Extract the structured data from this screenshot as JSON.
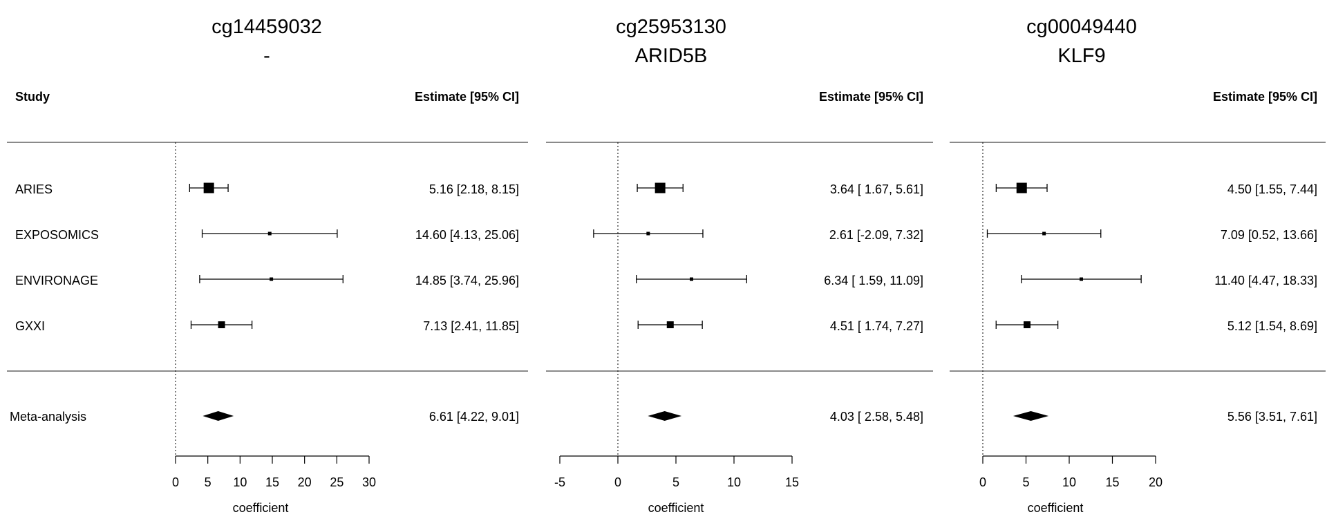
{
  "chart_data": [
    {
      "type": "forest",
      "title": "cg14459032",
      "subtitle": "-",
      "header_study": "Study",
      "header_estimate": "Estimate [95% CI]",
      "xlabel": "coefficient",
      "xticks": [
        "0",
        "5",
        "10",
        "15",
        "20",
        "25",
        "30"
      ],
      "xlim": [
        0,
        30
      ],
      "reference_line": 0,
      "studies": [
        {
          "name": "ARIES",
          "estimate": 5.16,
          "lower": 2.18,
          "upper": 8.15,
          "label": "5.16 [2.18,  8.15]",
          "weight": "large"
        },
        {
          "name": "EXPOSOMICS",
          "estimate": 14.6,
          "lower": 4.13,
          "upper": 25.06,
          "label": "14.60 [4.13, 25.06]",
          "weight": "small"
        },
        {
          "name": "ENVIRONAGE",
          "estimate": 14.85,
          "lower": 3.74,
          "upper": 25.96,
          "label": "14.85 [3.74, 25.96]",
          "weight": "small"
        },
        {
          "name": "GXXI",
          "estimate": 7.13,
          "lower": 2.41,
          "upper": 11.85,
          "label": "7.13 [2.41, 11.85]",
          "weight": "medium"
        }
      ],
      "meta": {
        "name": "Meta-analysis",
        "estimate": 6.61,
        "lower": 4.22,
        "upper": 9.01,
        "label": "6.61 [4.22,  9.01]"
      }
    },
    {
      "type": "forest",
      "title": "cg25953130",
      "subtitle": "ARID5B",
      "header_estimate": "Estimate [95% CI]",
      "xlabel": "coefficient",
      "xticks": [
        "-5",
        "0",
        "5",
        "10",
        "15"
      ],
      "xlim": [
        -5,
        15
      ],
      "reference_line": 0,
      "studies": [
        {
          "estimate": 3.64,
          "lower": 1.67,
          "upper": 5.61,
          "label": "3.64 [ 1.67,  5.61]",
          "weight": "large"
        },
        {
          "estimate": 2.61,
          "lower": -2.09,
          "upper": 7.32,
          "label": "2.61 [-2.09,  7.32]",
          "weight": "small"
        },
        {
          "estimate": 6.34,
          "lower": 1.59,
          "upper": 11.09,
          "label": "6.34 [ 1.59, 11.09]",
          "weight": "small"
        },
        {
          "estimate": 4.51,
          "lower": 1.74,
          "upper": 7.27,
          "label": "4.51 [ 1.74,  7.27]",
          "weight": "medium"
        }
      ],
      "meta": {
        "estimate": 4.03,
        "lower": 2.58,
        "upper": 5.48,
        "label": "4.03 [ 2.58,  5.48]"
      }
    },
    {
      "type": "forest",
      "title": "cg00049440",
      "subtitle": "KLF9",
      "header_estimate": "Estimate [95% CI]",
      "xlabel": "coefficient",
      "xticks": [
        "0",
        "5",
        "10",
        "15",
        "20"
      ],
      "xlim": [
        0,
        20
      ],
      "reference_line": 0,
      "studies": [
        {
          "estimate": 4.5,
          "lower": 1.55,
          "upper": 7.44,
          "label": "4.50 [1.55,  7.44]",
          "weight": "large"
        },
        {
          "estimate": 7.09,
          "lower": 0.52,
          "upper": 13.66,
          "label": "7.09 [0.52, 13.66]",
          "weight": "small"
        },
        {
          "estimate": 11.4,
          "lower": 4.47,
          "upper": 18.33,
          "label": "11.40 [4.47, 18.33]",
          "weight": "small"
        },
        {
          "estimate": 5.12,
          "lower": 1.54,
          "upper": 8.69,
          "label": "5.12 [1.54,  8.69]",
          "weight": "medium"
        }
      ],
      "meta": {
        "estimate": 5.56,
        "lower": 3.51,
        "upper": 7.61,
        "label": "5.56 [3.51,  7.61]"
      }
    }
  ]
}
